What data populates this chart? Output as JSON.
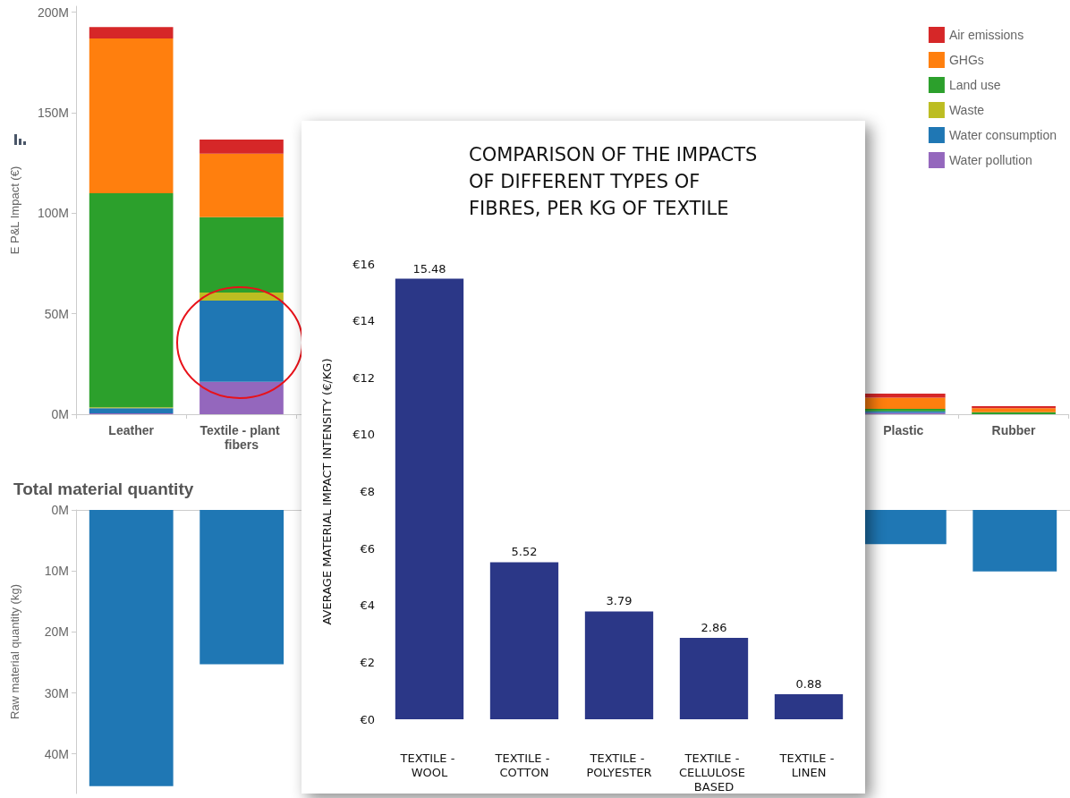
{
  "chart_data": [
    {
      "type": "bar",
      "stacked": true,
      "ylabel": "E P&L Impact (€)",
      "categories": [
        "Leather",
        "Textile - plant fibers",
        null,
        null,
        null,
        null,
        null,
        "Plastic",
        "Rubber"
      ],
      "series": [
        {
          "name": "Water pollution",
          "color": "#9467bd",
          "values": [
            0.5,
            16.1,
            null,
            null,
            null,
            null,
            null,
            0.7,
            null
          ]
        },
        {
          "name": "Water consumption",
          "color": "#1f77b4",
          "values": [
            2.5,
            40.4,
            null,
            null,
            null,
            null,
            null,
            0.7,
            null
          ]
        },
        {
          "name": "Waste",
          "color": "#bcbd22",
          "values": [
            0.5,
            4,
            null,
            null,
            null,
            null,
            null,
            null,
            null
          ]
        },
        {
          "name": "Land use",
          "color": "#2ca02c",
          "values": [
            106.5,
            37.6,
            null,
            null,
            null,
            null,
            null,
            1.3,
            1
          ]
        },
        {
          "name": "GHGs",
          "color": "#ff7f0e",
          "values": [
            77,
            31.6,
            null,
            null,
            null,
            null,
            null,
            5.5,
            2
          ]
        },
        {
          "name": "Air emissions",
          "color": "#d62728",
          "values": [
            5.6,
            7,
            null,
            null,
            null,
            null,
            null,
            2,
            1
          ]
        }
      ],
      "ylim": [
        0,
        203
      ],
      "yticks": [
        {
          "value": 0,
          "label": "0M"
        },
        {
          "value": 50,
          "label": "50M"
        },
        {
          "value": 100,
          "label": "100M"
        },
        {
          "value": 150,
          "label": "150M"
        },
        {
          "value": 200,
          "label": "200M"
        }
      ],
      "grid": false,
      "legend": "top right"
    },
    {
      "type": "bar",
      "title": "Total material quantity",
      "ylabel": "Raw material quantity (kg)",
      "categories": [
        null,
        null,
        null,
        null,
        null,
        null,
        null,
        null,
        null
      ],
      "values": [
        45.3,
        25.3,
        null,
        null,
        null,
        null,
        null,
        5.6,
        10.1
      ],
      "color": "#1f77b4",
      "ylim": [
        46.5,
        0
      ],
      "yticks": [
        {
          "value": 0,
          "label": "0M"
        },
        {
          "value": 10,
          "label": "10M"
        },
        {
          "value": 20,
          "label": "20M"
        },
        {
          "value": 30,
          "label": "30M"
        },
        {
          "value": 40,
          "label": "40M"
        }
      ],
      "grid": false,
      "tick_labels": "y"
    },
    {
      "type": "bar",
      "title": "COMPARISON OF THE IMPACTS OF DIFFERENT TYPES OF FIBRES, PER KG OF TEXTILE",
      "ylabel": "AVERAGE MATERIAL IMPACT INTENSITY (€/KG)",
      "categories": [
        "TEXTILE - WOOL",
        "TEXTILE - COTTON",
        "TEXTILE - POLYESTER",
        "TEXTILE - CELLULOSE BASED",
        "TEXTILE - LINEN"
      ],
      "values": [
        15.48,
        5.52,
        3.79,
        2.86,
        0.88
      ],
      "color": "#2b3787",
      "data_labels": true,
      "ylim": [
        0,
        16
      ],
      "yticks": [
        {
          "value": 0,
          "label": "€0"
        },
        {
          "value": 2,
          "label": "€2"
        },
        {
          "value": 4,
          "label": "€4"
        },
        {
          "value": 6,
          "label": "€6"
        },
        {
          "value": 8,
          "label": "€8"
        },
        {
          "value": 10,
          "label": "€10"
        },
        {
          "value": 12,
          "label": "€12"
        },
        {
          "value": 14,
          "label": "€14"
        },
        {
          "value": 16,
          "label": "€16"
        }
      ],
      "grid": false
    }
  ]
}
